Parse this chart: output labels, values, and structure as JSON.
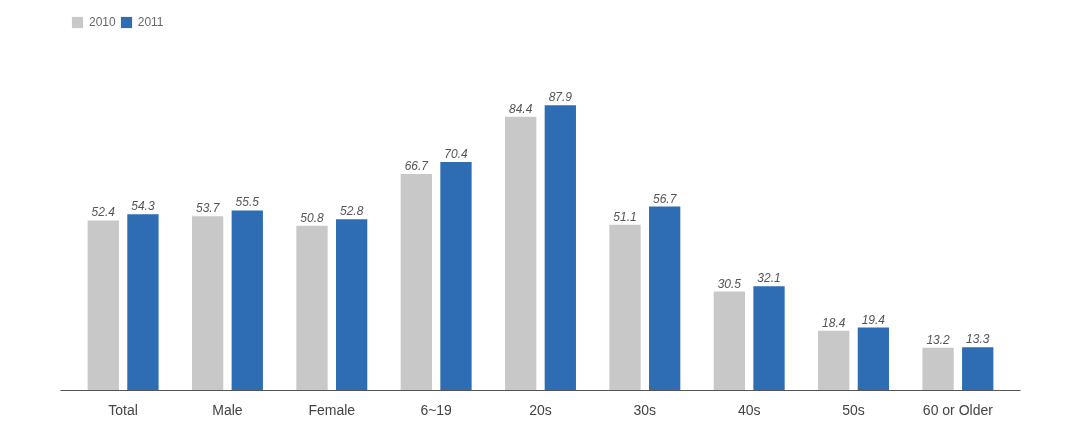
{
  "chart_data": {
    "type": "bar",
    "categories": [
      "Total",
      "Male",
      "Female",
      "6~19",
      "20s",
      "30s",
      "40s",
      "50s",
      "60 or Older"
    ],
    "series": [
      {
        "name": "2010",
        "color": "#c8c8c8",
        "values": [
          52.4,
          53.7,
          50.8,
          66.7,
          84.4,
          51.1,
          30.5,
          18.4,
          13.2
        ]
      },
      {
        "name": "2011",
        "color": "#2e6db4",
        "values": [
          54.3,
          55.5,
          52.8,
          70.4,
          87.9,
          56.7,
          32.1,
          19.4,
          13.3
        ]
      }
    ],
    "data_labels": true,
    "legend": "top left",
    "grid": false
  }
}
